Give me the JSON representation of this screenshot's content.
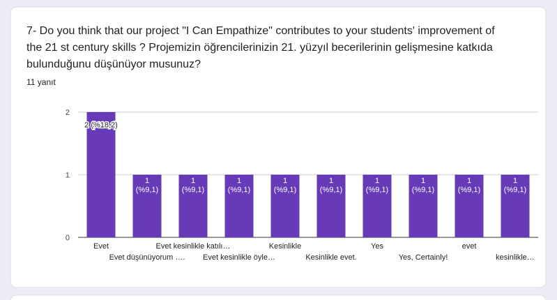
{
  "question": "7- Do you think that our project \"I Can Empathize\" contributes to your students' improvement of the 21 st century skills ? Projemizin öğrencilerinizin 21. yüzyıl becerilerinin gelişmesine katkıda bulunduğunu düşünüyor musunuz?",
  "response_count": "11 yanıt",
  "chart_data": {
    "type": "bar",
    "categories": [
      "Evet",
      "Evet düşünüyorum ….",
      "Evet kesinlikle katılı…",
      "Evet kesinlikle öyle…",
      "Kesinlikle",
      "Kesinlikle evet.",
      "Yes",
      "Yes, Certainly!",
      "evet",
      "kesinlikle…"
    ],
    "values": [
      2,
      1,
      1,
      1,
      1,
      1,
      1,
      1,
      1,
      1
    ],
    "value_labels": [
      "2 (%18,2)",
      "1 (%9,1)",
      "1 (%9,1)",
      "1 (%9,1)",
      "1 (%9,1)",
      "1 (%9,1)",
      "1 (%9,1)",
      "1 (%9,1)",
      "1 (%9,1)",
      "1 (%9,1)"
    ],
    "color": "#673ab7",
    "ylim": [
      0,
      2
    ],
    "yticks": [
      0,
      1,
      2
    ],
    "grid": true
  }
}
